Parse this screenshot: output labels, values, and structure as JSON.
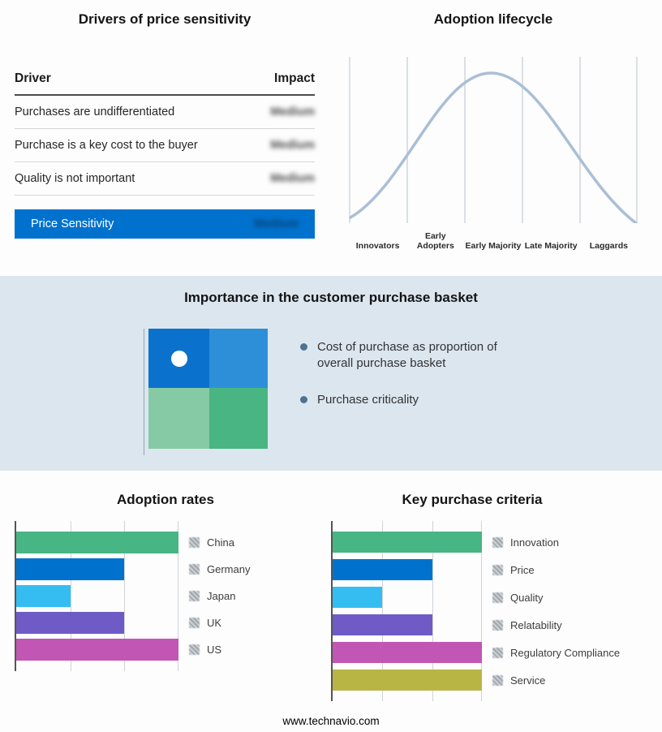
{
  "colors": {
    "accent": "#0072ce",
    "band": "#dce6ef"
  },
  "drivers_panel": {
    "title": "Drivers of price sensitivity",
    "col_driver": "Driver",
    "col_impact": "Impact",
    "rows": [
      {
        "driver": "Purchases are undifferentiated",
        "impact": "Medium"
      },
      {
        "driver": "Purchase is a key cost to the buyer",
        "impact": "Medium"
      },
      {
        "driver": "Quality is not important",
        "impact": "Medium"
      }
    ],
    "summary": {
      "label": "Price Sensitivity",
      "impact": "Medium"
    }
  },
  "lifecycle_panel": {
    "title": "Adoption lifecycle"
  },
  "basket_panel": {
    "title": "Importance in the customer purchase basket",
    "bullets": [
      "Cost of purchase as proportion of overall purchase basket",
      "Purchase criticality"
    ],
    "quadrant_colors": [
      "#0a72cc",
      "#2e8fd9",
      "#85caa4",
      "#49b583"
    ]
  },
  "footer": "www.technavio.com",
  "chart_data": [
    {
      "type": "line",
      "title": "Adoption lifecycle",
      "x_categories": [
        "Innovators",
        "Early Adopters",
        "Early Majority",
        "Late Majority",
        "Laggards"
      ],
      "description": "Bell-shaped adoption curve rising from Innovators, peaking at Early Majority, falling to Laggards",
      "curve_color": "#aabfd6",
      "grid": true,
      "legend_position": "none"
    },
    {
      "type": "bar",
      "title": "Adoption rates",
      "orientation": "horizontal",
      "categories": [
        "China",
        "Germany",
        "Japan",
        "UK",
        "US"
      ],
      "values": [
        3,
        2,
        1,
        2,
        3
      ],
      "xmax": 3,
      "xlabel": "",
      "ylabel": "",
      "colors": [
        "#47b584",
        "#0072ce",
        "#35bdf2",
        "#6e5bc6",
        "#c156b4"
      ],
      "grid": true,
      "legend_position": "right"
    },
    {
      "type": "bar",
      "title": "Key purchase criteria",
      "orientation": "horizontal",
      "categories": [
        "Innovation",
        "Price",
        "Quality",
        "Relatability",
        "Regulatory Compliance",
        "Service"
      ],
      "values": [
        3,
        2,
        1,
        2,
        3,
        3
      ],
      "xmax": 3,
      "xlabel": "",
      "ylabel": "",
      "colors": [
        "#47b584",
        "#0072ce",
        "#35bdf2",
        "#6e5bc6",
        "#c156b4",
        "#b9b545"
      ],
      "grid": true,
      "legend_position": "right"
    }
  ]
}
